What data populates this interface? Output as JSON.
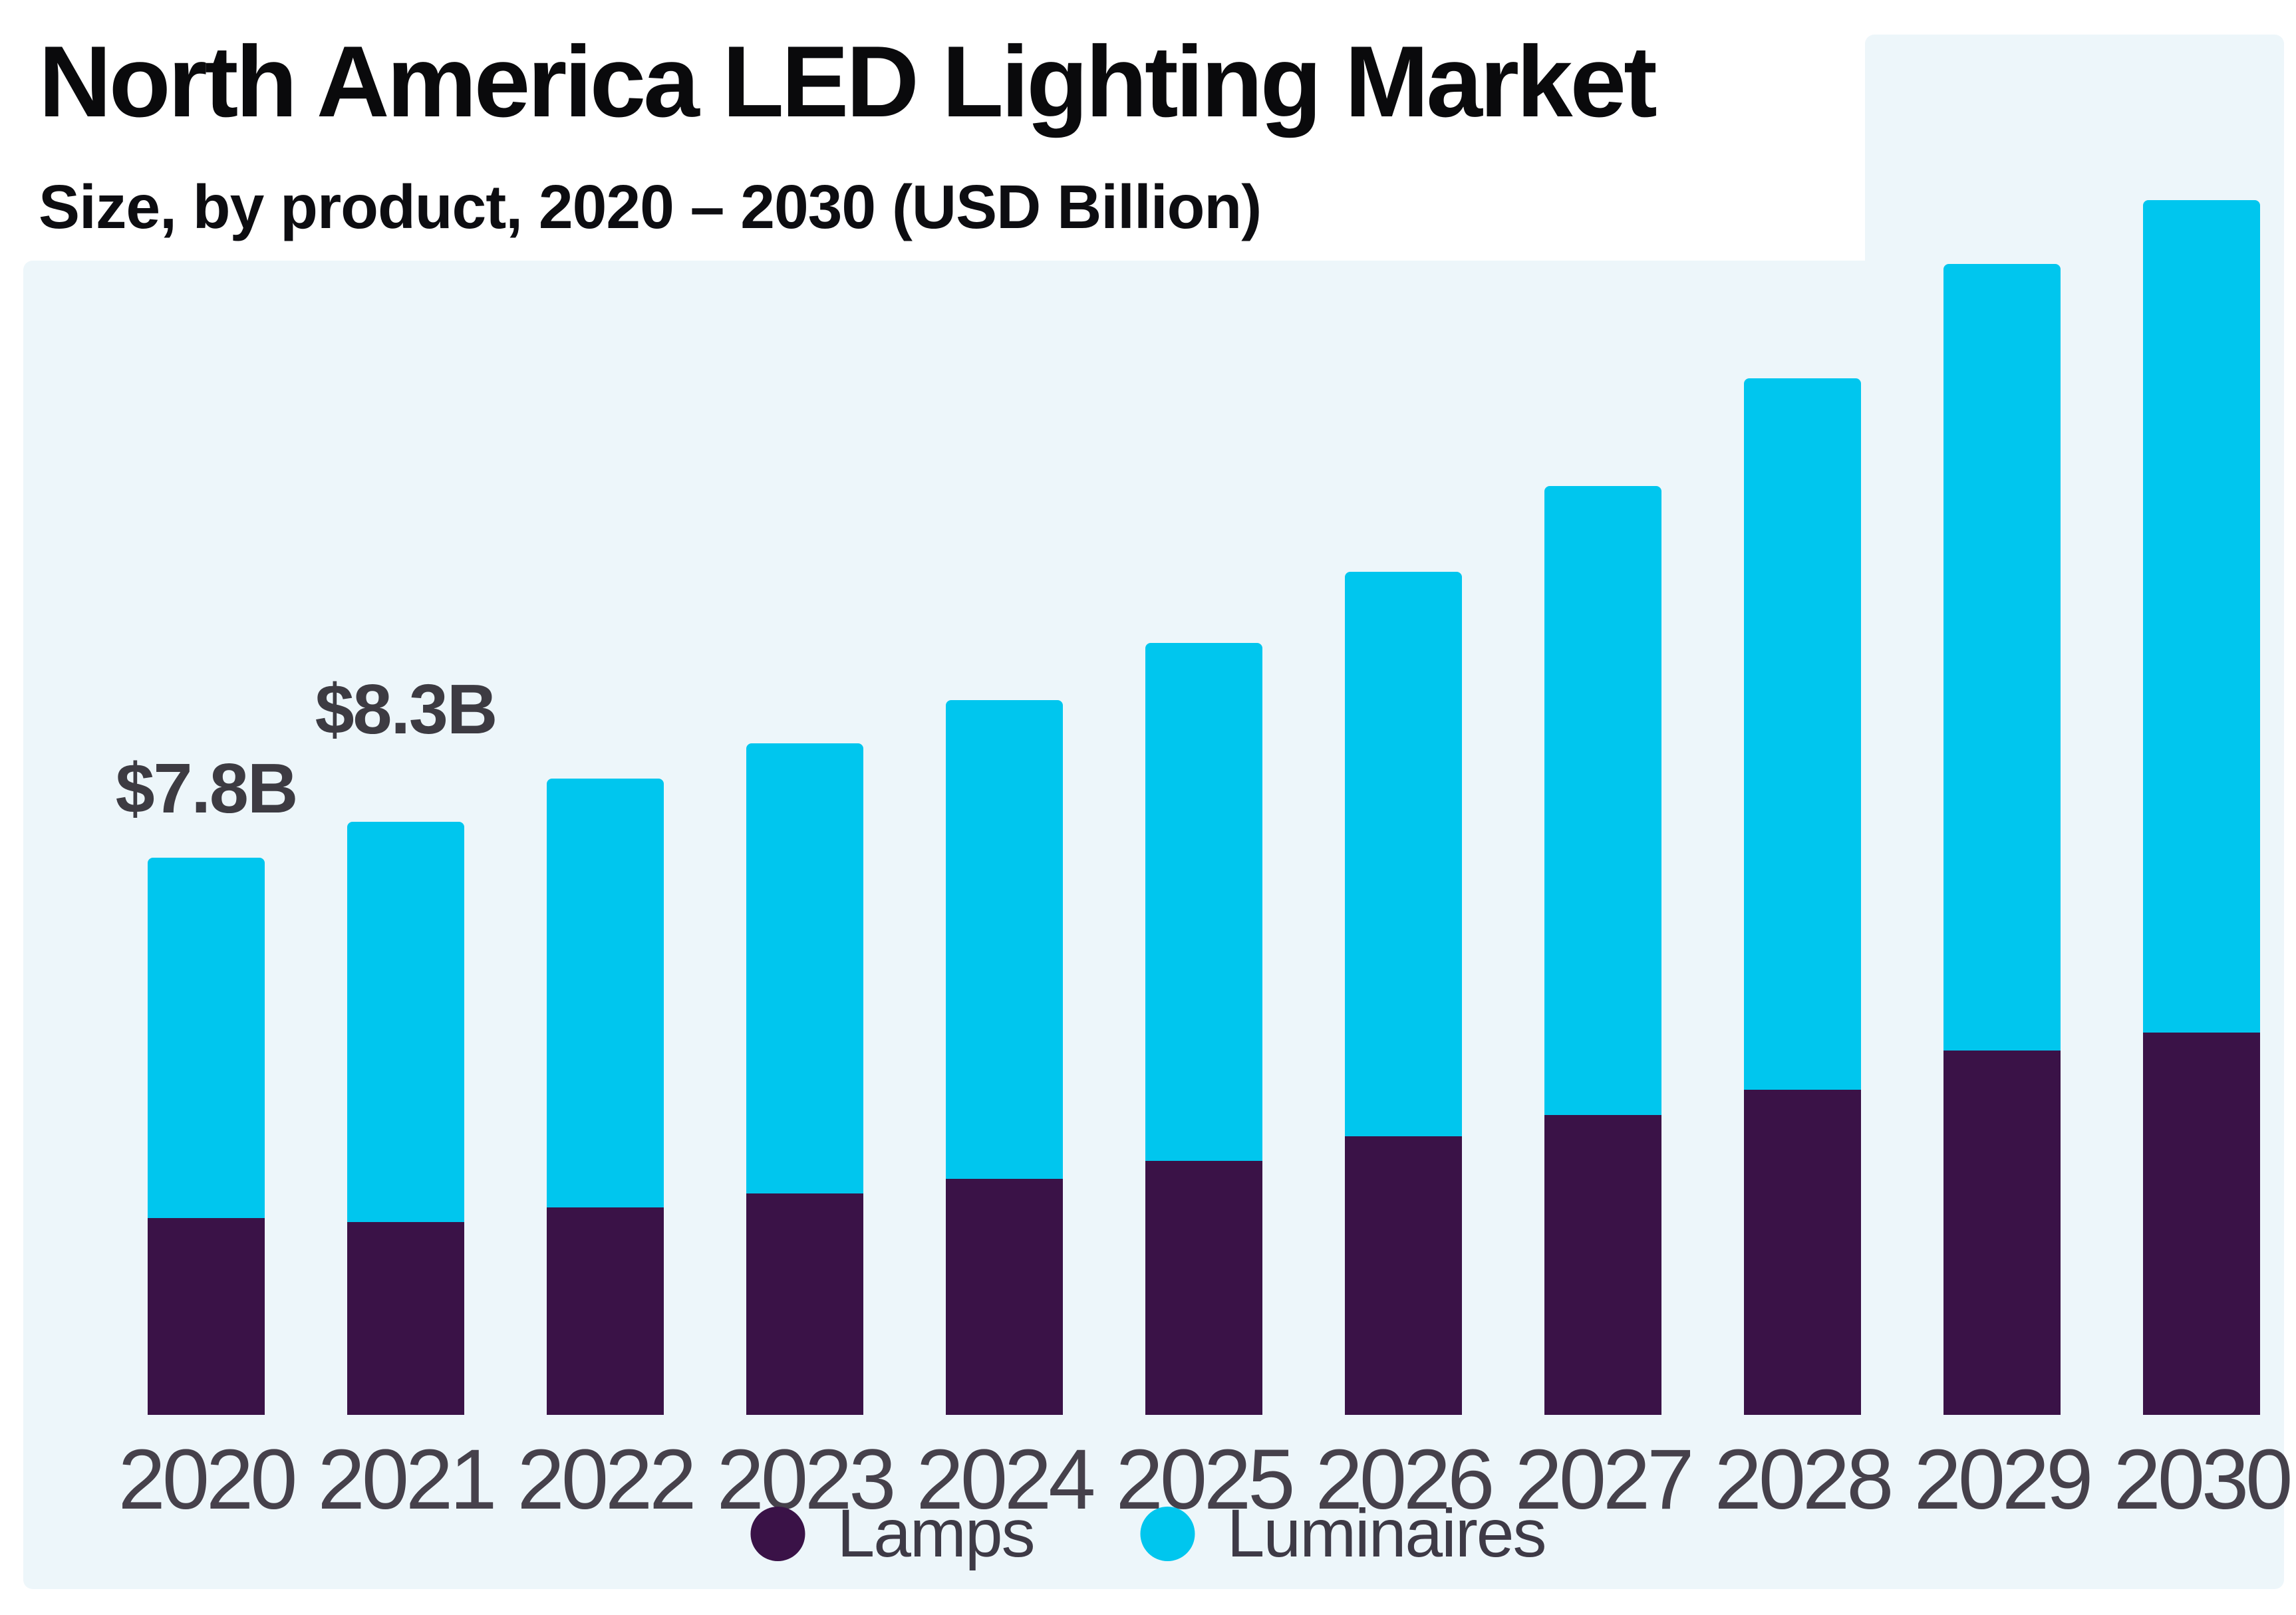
{
  "page": {
    "background_color": "#ffffff",
    "panel_color": "#edf6fa"
  },
  "header": {
    "title": "North America LED Lighting Market",
    "subtitle": "Size, by product, 2020 – 2030 (USD Billion)"
  },
  "chart_data": {
    "type": "bar",
    "stacked": true,
    "title": "North America LED Lighting Market",
    "subtitle": "Size, by product, 2020 – 2030 (USD Billion)",
    "unit": "USD Billion",
    "xlabel": "",
    "ylabel": "",
    "axes_visible": false,
    "grid": false,
    "legend_position": "bottom",
    "categories": [
      "2020",
      "2021",
      "2022",
      "2023",
      "2024",
      "2025",
      "2026",
      "2027",
      "2028",
      "2029",
      "2030"
    ],
    "series": [
      {
        "name": "Lamps",
        "color": "#3a1247",
        "values": [
          2.75,
          2.7,
          2.9,
          3.1,
          3.3,
          3.55,
          3.9,
          4.2,
          4.55,
          5.1,
          5.35
        ]
      },
      {
        "name": "Luminaires",
        "color": "#00c6ee",
        "values": [
          5.05,
          5.6,
          6.0,
          6.3,
          6.7,
          7.25,
          7.9,
          8.8,
          9.95,
          11.0,
          11.65
        ]
      }
    ],
    "totals": [
      7.8,
      8.3,
      8.9,
      9.4,
      10.0,
      10.8,
      11.8,
      13.0,
      14.5,
      16.1,
      17.0
    ],
    "data_labels": [
      {
        "category": "2020",
        "text": "$7.8B"
      },
      {
        "category": "2021",
        "text": "$8.3B"
      }
    ],
    "ylim": [
      0,
      18.9
    ]
  }
}
